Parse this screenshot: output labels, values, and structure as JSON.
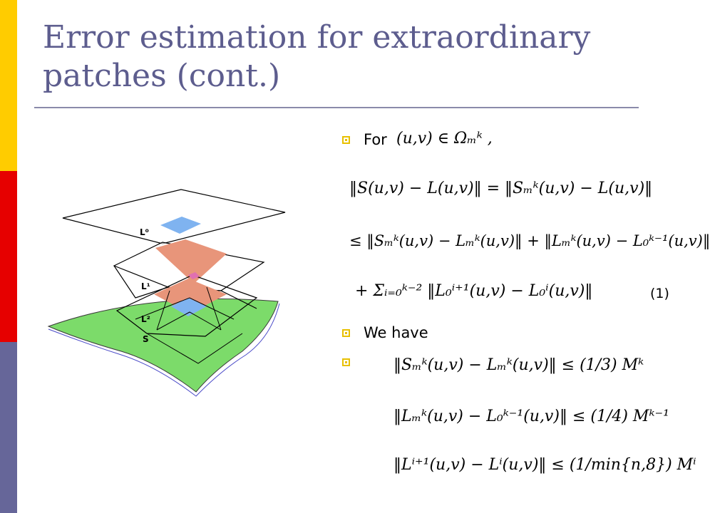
{
  "slide": {
    "title_line1": "Error estimation for extraordinary",
    "title_line2": "patches (cont.)",
    "bullets": {
      "for_label": "For",
      "for_condition": "(u,v) ∈ Ωₘᵏ ,",
      "we_have": "We have"
    },
    "equations": {
      "eq1_line1": "‖S(u,v) − L(u,v)‖ = ‖Sₘᵏ(u,v) − L(u,v)‖",
      "eq1_line2": "≤ ‖Sₘᵏ(u,v) − Lₘᵏ(u,v)‖ + ‖Lₘᵏ(u,v) − L₀ᵏ⁻¹(u,v)‖",
      "eq1_line3": "+ Σᵢ₌₀ᵏ⁻² ‖L₀ⁱ⁺¹(u,v) − L₀ⁱ(u,v)‖",
      "eq1_label": "(1)",
      "bound1": "‖Sₘᵏ(u,v) − Lₘᵏ(u,v)‖ ≤ (1/3) Mᵏ",
      "bound2": "‖Lₘᵏ(u,v) − L₀ᵏ⁻¹(u,v)‖ ≤ (1/4) Mᵏ⁻¹",
      "bound3": "‖Lⁱ⁺¹(u,v) − Lⁱ(u,v)‖ ≤ (1/min{n,8}) Mⁱ"
    },
    "figure": {
      "label_l0": "L⁰",
      "label_l1": "L¹",
      "label_l2": "L²",
      "label_s": "S"
    }
  }
}
